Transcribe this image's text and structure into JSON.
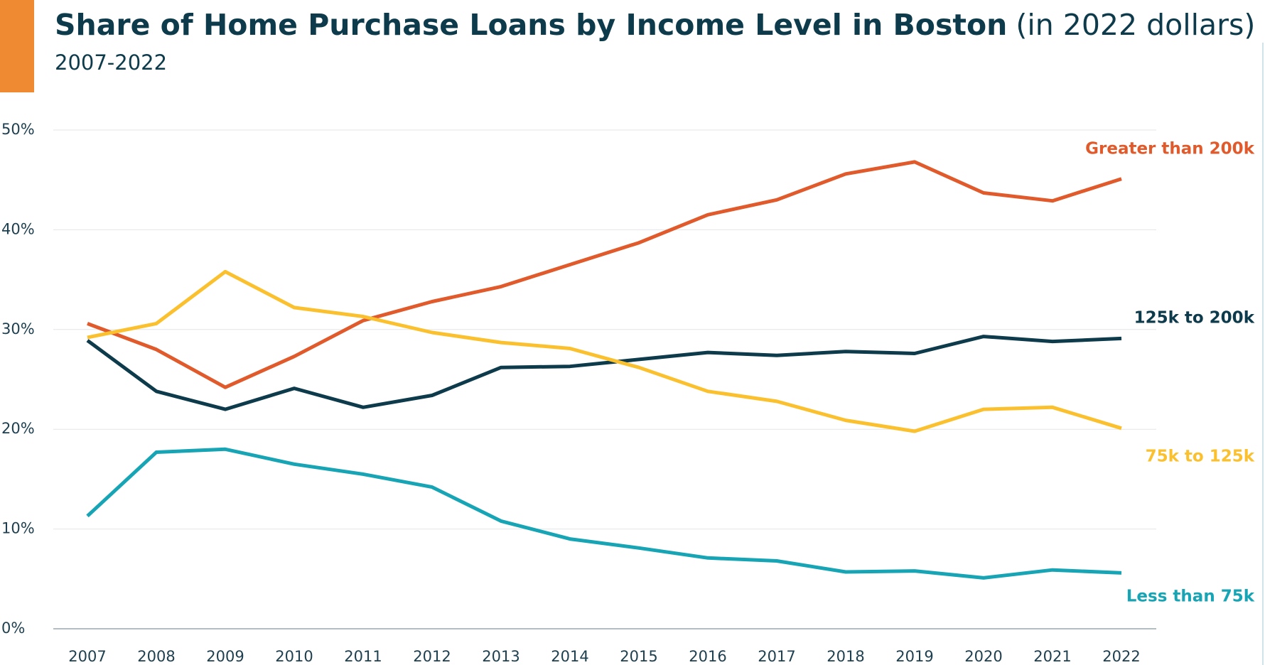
{
  "chart_data": {
    "type": "line",
    "title": "Share of Home Purchase Loans by Income Level in Boston",
    "title_note": "(in 2022 dollars)",
    "subtitle": "2007-2022",
    "categories": [
      "2007",
      "2008",
      "2009",
      "2010",
      "2011",
      "2012",
      "2013",
      "2014",
      "2015",
      "2016",
      "2017",
      "2018",
      "2019",
      "2020",
      "2021",
      "2022"
    ],
    "series": [
      {
        "name": "Greater than 200k",
        "color": "#e05a2b",
        "values": [
          30.6,
          28.0,
          24.2,
          27.3,
          30.9,
          32.8,
          34.3,
          36.5,
          38.7,
          41.5,
          43.0,
          45.6,
          46.8,
          43.7,
          42.9,
          45.1
        ]
      },
      {
        "name": "125k  to 200k",
        "color": "#0d3b4c",
        "values": [
          28.9,
          23.8,
          22.0,
          24.1,
          22.2,
          23.4,
          26.2,
          26.3,
          27.0,
          27.7,
          27.4,
          27.8,
          27.6,
          29.3,
          28.8,
          29.1
        ]
      },
      {
        "name": "75k to 125k",
        "color": "#fbc02d",
        "values": [
          29.2,
          30.6,
          35.8,
          32.2,
          31.3,
          29.7,
          28.7,
          28.1,
          26.2,
          23.8,
          22.8,
          20.9,
          19.8,
          22.0,
          22.2,
          20.1
        ]
      },
      {
        "name": "Less than 75k",
        "color": "#17a5b5",
        "values": [
          11.3,
          17.7,
          18.0,
          16.5,
          15.5,
          14.2,
          10.8,
          9.0,
          8.1,
          7.1,
          6.8,
          5.7,
          5.8,
          5.1,
          5.9,
          5.6
        ]
      }
    ],
    "ylim": [
      0,
      50
    ],
    "yticks": [
      {
        "value": 0,
        "label": "0%"
      },
      {
        "value": 10,
        "label": "10%"
      },
      {
        "value": 20,
        "label": "20%"
      },
      {
        "value": 30,
        "label": "30%"
      },
      {
        "value": 40,
        "label": "40%"
      },
      {
        "value": 50,
        "label": "50%"
      }
    ],
    "grid": true
  }
}
